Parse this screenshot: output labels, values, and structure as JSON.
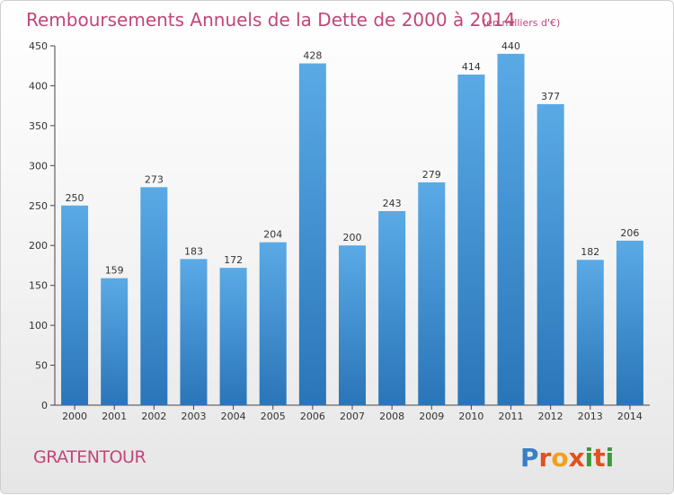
{
  "chart_data": {
    "type": "bar",
    "title": "Remboursements Annuels de la Dette de 2000 à 2014",
    "subtitle": "(en milliers d'€)",
    "categories": [
      "2000",
      "2001",
      "2002",
      "2003",
      "2004",
      "2005",
      "2006",
      "2007",
      "2008",
      "2009",
      "2010",
      "2011",
      "2012",
      "2013",
      "2014"
    ],
    "values": [
      250,
      159,
      273,
      183,
      172,
      204,
      428,
      200,
      243,
      279,
      414,
      440,
      377,
      182,
      206
    ],
    "ylim": [
      0,
      450
    ],
    "yticks": [
      0,
      50,
      100,
      150,
      200,
      250,
      300,
      350,
      400,
      450
    ],
    "grid": false,
    "bar_color_top": "#5aaae6",
    "bar_color_bottom": "#2a75b8"
  },
  "footer": {
    "commune": "GRATENTOUR",
    "brand_letters": [
      "P",
      "r",
      "o",
      "x",
      "i",
      "t",
      "i"
    ],
    "brand_colors": [
      "#3a7fc4",
      "#e0521f",
      "#f0a020",
      "#e0521f",
      "#3a9a3a",
      "#e0521f",
      "#3a9a3a"
    ]
  },
  "colors": {
    "title": "#c0467a",
    "axis": "#444444"
  }
}
